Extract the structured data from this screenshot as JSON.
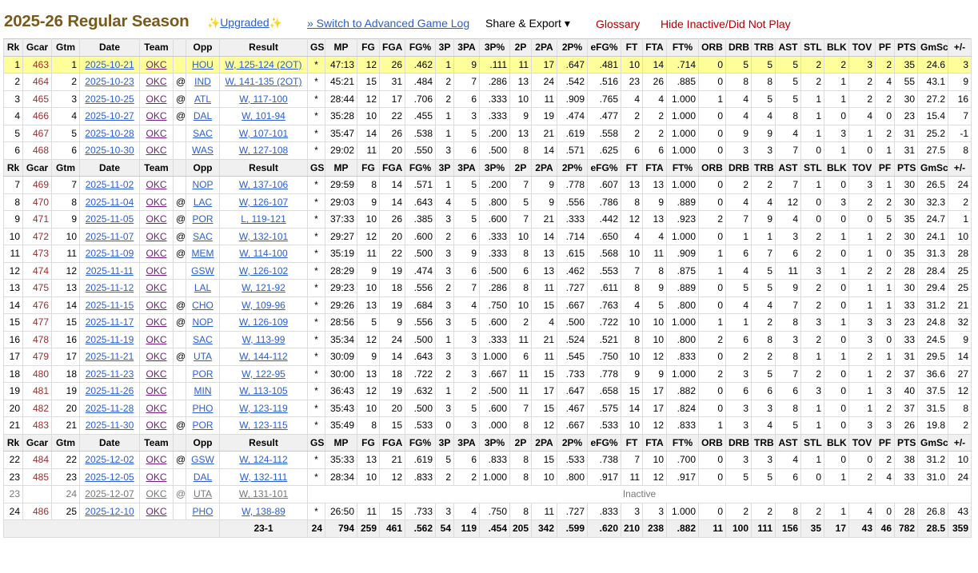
{
  "title": "2025-26 Regular Season",
  "links": {
    "upgraded": "Upgraded",
    "switch": "» Switch to Advanced Game Log",
    "share": "Share & Export ▾",
    "glossary": "Glossary",
    "hide_inactive": "Hide Inactive/Did Not Play"
  },
  "columns": [
    "Rk",
    "Gcar",
    "Gtm",
    "Date",
    "Team",
    "",
    "Opp",
    "Result",
    "GS",
    "MP",
    "FG",
    "FGA",
    "FG%",
    "3P",
    "3PA",
    "3P%",
    "2P",
    "2PA",
    "2P%",
    "eFG%",
    "FT",
    "FTA",
    "FT%",
    "ORB",
    "DRB",
    "TRB",
    "AST",
    "STL",
    "BLK",
    "TOV",
    "PF",
    "PTS",
    "GmSc",
    "+/-"
  ],
  "rows": [
    {
      "type": "game",
      "hl": true,
      "c": [
        "1",
        "463",
        "1",
        "2025-10-21",
        "OKC",
        "",
        "HOU",
        "W, 125-124 (2OT)",
        "*",
        "47:13",
        "12",
        "26",
        ".462",
        "1",
        "9",
        ".111",
        "11",
        "17",
        ".647",
        ".481",
        "10",
        "14",
        ".714",
        "0",
        "5",
        "5",
        "5",
        "2",
        "2",
        "3",
        "2",
        "35",
        "24.6",
        "3"
      ]
    },
    {
      "type": "game",
      "c": [
        "2",
        "464",
        "2",
        "2025-10-23",
        "OKC",
        "@",
        "IND",
        "W, 141-135 (2OT)",
        "*",
        "45:21",
        "15",
        "31",
        ".484",
        "2",
        "7",
        ".286",
        "13",
        "24",
        ".542",
        ".516",
        "23",
        "26",
        ".885",
        "0",
        "8",
        "8",
        "5",
        "2",
        "1",
        "2",
        "4",
        "55",
        "43.1",
        "9"
      ]
    },
    {
      "type": "game",
      "c": [
        "3",
        "465",
        "3",
        "2025-10-25",
        "OKC",
        "@",
        "ATL",
        "W, 117-100",
        "*",
        "28:44",
        "12",
        "17",
        ".706",
        "2",
        "6",
        ".333",
        "10",
        "11",
        ".909",
        ".765",
        "4",
        "4",
        "1.000",
        "1",
        "4",
        "5",
        "5",
        "1",
        "1",
        "2",
        "2",
        "30",
        "27.2",
        "16"
      ]
    },
    {
      "type": "game",
      "c": [
        "4",
        "466",
        "4",
        "2025-10-27",
        "OKC",
        "@",
        "DAL",
        "W, 101-94",
        "*",
        "35:28",
        "10",
        "22",
        ".455",
        "1",
        "3",
        ".333",
        "9",
        "19",
        ".474",
        ".477",
        "2",
        "2",
        "1.000",
        "0",
        "4",
        "4",
        "8",
        "1",
        "0",
        "4",
        "0",
        "23",
        "15.4",
        "7"
      ]
    },
    {
      "type": "game",
      "c": [
        "5",
        "467",
        "5",
        "2025-10-28",
        "OKC",
        "",
        "SAC",
        "W, 107-101",
        "*",
        "35:47",
        "14",
        "26",
        ".538",
        "1",
        "5",
        ".200",
        "13",
        "21",
        ".619",
        ".558",
        "2",
        "2",
        "1.000",
        "0",
        "9",
        "9",
        "4",
        "1",
        "3",
        "1",
        "2",
        "31",
        "25.2",
        "-1"
      ]
    },
    {
      "type": "game",
      "c": [
        "6",
        "468",
        "6",
        "2025-10-30",
        "OKC",
        "",
        "WAS",
        "W, 127-108",
        "*",
        "29:02",
        "11",
        "20",
        ".550",
        "3",
        "6",
        ".500",
        "8",
        "14",
        ".571",
        ".625",
        "6",
        "6",
        "1.000",
        "0",
        "3",
        "3",
        "7",
        "0",
        "1",
        "0",
        "1",
        "31",
        "27.5",
        "8"
      ]
    },
    {
      "type": "header"
    },
    {
      "type": "game",
      "c": [
        "7",
        "469",
        "7",
        "2025-11-02",
        "OKC",
        "",
        "NOP",
        "W, 137-106",
        "*",
        "29:59",
        "8",
        "14",
        ".571",
        "1",
        "5",
        ".200",
        "7",
        "9",
        ".778",
        ".607",
        "13",
        "13",
        "1.000",
        "0",
        "2",
        "2",
        "7",
        "1",
        "0",
        "3",
        "1",
        "30",
        "26.5",
        "24"
      ]
    },
    {
      "type": "game",
      "c": [
        "8",
        "470",
        "8",
        "2025-11-04",
        "OKC",
        "@",
        "LAC",
        "W, 126-107",
        "*",
        "29:03",
        "9",
        "14",
        ".643",
        "4",
        "5",
        ".800",
        "5",
        "9",
        ".556",
        ".786",
        "8",
        "9",
        ".889",
        "0",
        "4",
        "4",
        "12",
        "0",
        "3",
        "2",
        "2",
        "30",
        "32.3",
        "2"
      ]
    },
    {
      "type": "game",
      "c": [
        "9",
        "471",
        "9",
        "2025-11-05",
        "OKC",
        "@",
        "POR",
        "L, 119-121",
        "*",
        "37:33",
        "10",
        "26",
        ".385",
        "3",
        "5",
        ".600",
        "7",
        "21",
        ".333",
        ".442",
        "12",
        "13",
        ".923",
        "2",
        "7",
        "9",
        "4",
        "0",
        "0",
        "0",
        "5",
        "35",
        "24.7",
        "1"
      ]
    },
    {
      "type": "game",
      "c": [
        "10",
        "472",
        "10",
        "2025-11-07",
        "OKC",
        "@",
        "SAC",
        "W, 132-101",
        "*",
        "29:27",
        "12",
        "20",
        ".600",
        "2",
        "6",
        ".333",
        "10",
        "14",
        ".714",
        ".650",
        "4",
        "4",
        "1.000",
        "0",
        "1",
        "1",
        "3",
        "2",
        "1",
        "1",
        "2",
        "30",
        "24.1",
        "10"
      ]
    },
    {
      "type": "game",
      "c": [
        "11",
        "473",
        "11",
        "2025-11-09",
        "OKC",
        "@",
        "MEM",
        "W, 114-100",
        "*",
        "35:19",
        "11",
        "22",
        ".500",
        "3",
        "9",
        ".333",
        "8",
        "13",
        ".615",
        ".568",
        "10",
        "11",
        ".909",
        "1",
        "6",
        "7",
        "6",
        "2",
        "0",
        "1",
        "0",
        "35",
        "31.3",
        "28"
      ]
    },
    {
      "type": "game",
      "c": [
        "12",
        "474",
        "12",
        "2025-11-11",
        "OKC",
        "",
        "GSW",
        "W, 126-102",
        "*",
        "28:29",
        "9",
        "19",
        ".474",
        "3",
        "6",
        ".500",
        "6",
        "13",
        ".462",
        ".553",
        "7",
        "8",
        ".875",
        "1",
        "4",
        "5",
        "11",
        "3",
        "1",
        "2",
        "2",
        "28",
        "28.4",
        "25"
      ]
    },
    {
      "type": "game",
      "c": [
        "13",
        "475",
        "13",
        "2025-11-12",
        "OKC",
        "",
        "LAL",
        "W, 121-92",
        "*",
        "29:23",
        "10",
        "18",
        ".556",
        "2",
        "7",
        ".286",
        "8",
        "11",
        ".727",
        ".611",
        "8",
        "9",
        ".889",
        "0",
        "5",
        "5",
        "9",
        "2",
        "0",
        "1",
        "1",
        "30",
        "29.4",
        "25"
      ]
    },
    {
      "type": "game",
      "c": [
        "14",
        "476",
        "14",
        "2025-11-15",
        "OKC",
        "@",
        "CHO",
        "W, 109-96",
        "*",
        "29:26",
        "13",
        "19",
        ".684",
        "3",
        "4",
        ".750",
        "10",
        "15",
        ".667",
        ".763",
        "4",
        "5",
        ".800",
        "0",
        "4",
        "4",
        "7",
        "2",
        "0",
        "1",
        "1",
        "33",
        "31.2",
        "21"
      ]
    },
    {
      "type": "game",
      "c": [
        "15",
        "477",
        "15",
        "2025-11-17",
        "OKC",
        "@",
        "NOP",
        "W, 126-109",
        "*",
        "28:56",
        "5",
        "9",
        ".556",
        "3",
        "5",
        ".600",
        "2",
        "4",
        ".500",
        ".722",
        "10",
        "10",
        "1.000",
        "1",
        "1",
        "2",
        "8",
        "3",
        "1",
        "3",
        "3",
        "23",
        "24.8",
        "32"
      ]
    },
    {
      "type": "game",
      "c": [
        "16",
        "478",
        "16",
        "2025-11-19",
        "OKC",
        "",
        "SAC",
        "W, 113-99",
        "*",
        "35:34",
        "12",
        "24",
        ".500",
        "1",
        "3",
        ".333",
        "11",
        "21",
        ".524",
        ".521",
        "8",
        "10",
        ".800",
        "2",
        "6",
        "8",
        "3",
        "2",
        "0",
        "3",
        "0",
        "33",
        "24.5",
        "9"
      ]
    },
    {
      "type": "game",
      "c": [
        "17",
        "479",
        "17",
        "2025-11-21",
        "OKC",
        "@",
        "UTA",
        "W, 144-112",
        "*",
        "30:09",
        "9",
        "14",
        ".643",
        "3",
        "3",
        "1.000",
        "6",
        "11",
        ".545",
        ".750",
        "10",
        "12",
        ".833",
        "0",
        "2",
        "2",
        "8",
        "1",
        "1",
        "2",
        "1",
        "31",
        "29.5",
        "14"
      ]
    },
    {
      "type": "game",
      "c": [
        "18",
        "480",
        "18",
        "2025-11-23",
        "OKC",
        "",
        "POR",
        "W, 122-95",
        "*",
        "30:00",
        "13",
        "18",
        ".722",
        "2",
        "3",
        ".667",
        "11",
        "15",
        ".733",
        ".778",
        "9",
        "9",
        "1.000",
        "2",
        "3",
        "5",
        "7",
        "2",
        "0",
        "1",
        "2",
        "37",
        "36.6",
        "27"
      ]
    },
    {
      "type": "game",
      "c": [
        "19",
        "481",
        "19",
        "2025-11-26",
        "OKC",
        "",
        "MIN",
        "W, 113-105",
        "*",
        "36:43",
        "12",
        "19",
        ".632",
        "1",
        "2",
        ".500",
        "11",
        "17",
        ".647",
        ".658",
        "15",
        "17",
        ".882",
        "0",
        "6",
        "6",
        "6",
        "3",
        "0",
        "1",
        "3",
        "40",
        "37.5",
        "12"
      ]
    },
    {
      "type": "game",
      "c": [
        "20",
        "482",
        "20",
        "2025-11-28",
        "OKC",
        "",
        "PHO",
        "W, 123-119",
        "*",
        "35:43",
        "10",
        "20",
        ".500",
        "3",
        "5",
        ".600",
        "7",
        "15",
        ".467",
        ".575",
        "14",
        "17",
        ".824",
        "0",
        "3",
        "3",
        "8",
        "1",
        "0",
        "1",
        "2",
        "37",
        "31.5",
        "8"
      ]
    },
    {
      "type": "game",
      "c": [
        "21",
        "483",
        "21",
        "2025-11-30",
        "OKC",
        "@",
        "POR",
        "W, 123-115",
        "*",
        "35:49",
        "8",
        "15",
        ".533",
        "0",
        "3",
        ".000",
        "8",
        "12",
        ".667",
        ".533",
        "10",
        "12",
        ".833",
        "1",
        "3",
        "4",
        "5",
        "1",
        "0",
        "3",
        "3",
        "26",
        "19.8",
        "2"
      ]
    },
    {
      "type": "header"
    },
    {
      "type": "game",
      "c": [
        "22",
        "484",
        "22",
        "2025-12-02",
        "OKC",
        "@",
        "GSW",
        "W, 124-112",
        "*",
        "35:33",
        "13",
        "21",
        ".619",
        "5",
        "6",
        ".833",
        "8",
        "15",
        ".533",
        ".738",
        "7",
        "10",
        ".700",
        "0",
        "3",
        "3",
        "4",
        "1",
        "0",
        "0",
        "2",
        "38",
        "31.2",
        "10"
      ]
    },
    {
      "type": "game",
      "c": [
        "23",
        "485",
        "23",
        "2025-12-05",
        "OKC",
        "",
        "DAL",
        "W, 132-111",
        "*",
        "28:34",
        "10",
        "12",
        ".833",
        "2",
        "2",
        "1.000",
        "8",
        "10",
        ".800",
        ".917",
        "11",
        "12",
        ".917",
        "0",
        "5",
        "5",
        "6",
        "0",
        "1",
        "2",
        "4",
        "33",
        "31.0",
        "24"
      ]
    },
    {
      "type": "inactive",
      "c": [
        "23",
        "",
        "24",
        "2025-12-07",
        "OKC",
        "@",
        "UTA",
        "W, 131-101"
      ],
      "note": "Inactive"
    },
    {
      "type": "game",
      "c": [
        "24",
        "486",
        "25",
        "2025-12-10",
        "OKC",
        "",
        "PHO",
        "W, 138-89",
        "*",
        "26:50",
        "11",
        "15",
        ".733",
        "3",
        "4",
        ".750",
        "8",
        "11",
        ".727",
        ".833",
        "3",
        "3",
        "1.000",
        "0",
        "2",
        "2",
        "8",
        "2",
        "1",
        "4",
        "0",
        "28",
        "26.8",
        "43"
      ]
    }
  ],
  "totals": {
    "record": "23-1",
    "stats": [
      "24",
      "794",
      "259",
      "461",
      ".562",
      "54",
      "119",
      ".454",
      "205",
      "342",
      ".599",
      ".620",
      "210",
      "238",
      ".882",
      "11",
      "100",
      "111",
      "156",
      "35",
      "17",
      "43",
      "46",
      "782",
      "28.5",
      "359"
    ]
  }
}
